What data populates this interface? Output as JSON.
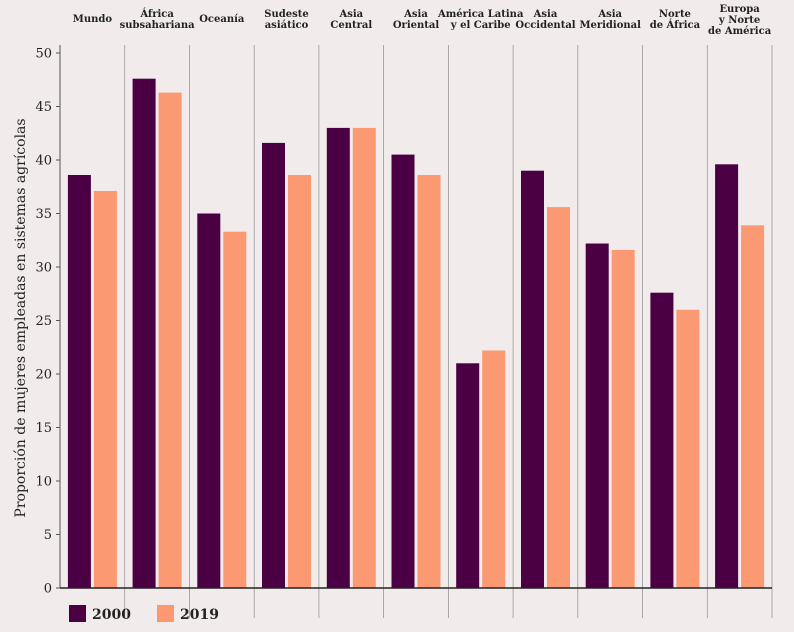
{
  "chart_data": {
    "type": "bar",
    "title": "",
    "xlabel": "",
    "ylabel": "Proporción de mujeres empleadas en sistemas agrícolas",
    "ylim": [
      0,
      50
    ],
    "yticks": [
      0,
      5,
      10,
      15,
      20,
      25,
      30,
      35,
      40,
      45,
      50
    ],
    "grid": false,
    "legend_position": "bottom-left",
    "categories": [
      [
        "Mundo"
      ],
      [
        "África",
        "subsahariana"
      ],
      [
        "Oceanía"
      ],
      [
        "Sudeste",
        "asiático"
      ],
      [
        "Asia",
        "Central"
      ],
      [
        "Asia",
        "Oriental"
      ],
      [
        "América Latina",
        "y el Caribe"
      ],
      [
        "Asia",
        "Occidental"
      ],
      [
        "Asia",
        "Meridional"
      ],
      [
        "Norte",
        "de África"
      ],
      [
        "Europa",
        "y Norte",
        "de América"
      ]
    ],
    "series": [
      {
        "name": "2000",
        "color": "#4a0042",
        "values": [
          38.6,
          47.6,
          35.0,
          41.6,
          43.0,
          40.5,
          21.0,
          39.0,
          32.2,
          27.6,
          39.6
        ]
      },
      {
        "name": "2019",
        "color": "#fb9a72",
        "values": [
          37.1,
          46.3,
          33.3,
          38.6,
          43.0,
          38.6,
          22.2,
          35.6,
          31.6,
          26.0,
          33.9
        ]
      }
    ]
  }
}
